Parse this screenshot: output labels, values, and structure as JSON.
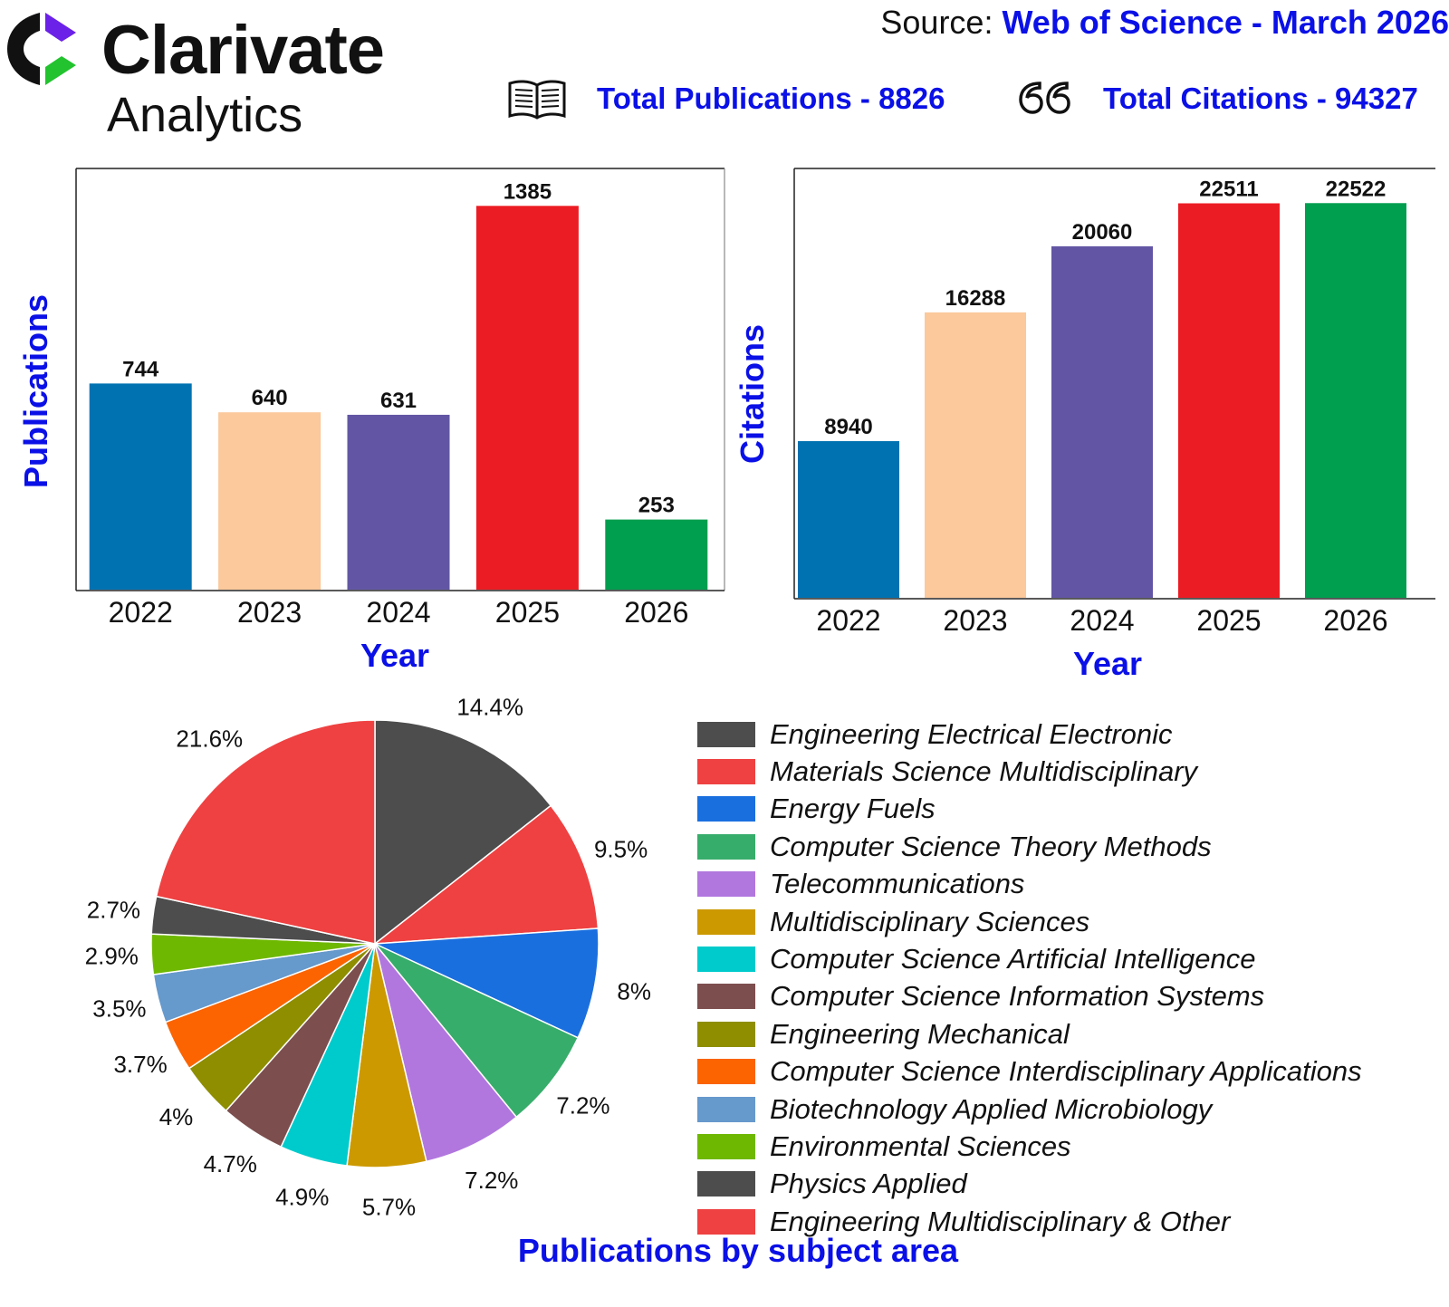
{
  "header": {
    "logo_line1": "Clarivate",
    "logo_line2": "Analytics",
    "source_label": "Source: ",
    "source_value": "Web of Science - March 2026",
    "total_publications": "Total Publications - 8826",
    "total_citations": "Total Citations - 94327",
    "publications_icon": "open-book-icon",
    "citations_icon": "quote-icon",
    "accent_color": "#0a10e6"
  },
  "chart_data": [
    {
      "type": "bar",
      "categories": [
        "2022",
        "2023",
        "2024",
        "2025",
        "2026"
      ],
      "values": [
        744,
        640,
        631,
        1385,
        253
      ],
      "labels": [
        "744",
        "640",
        "631",
        "1385",
        "253"
      ],
      "colors": [
        "#0072b2",
        "#fbc99b",
        "#6256a4",
        "#ec1c24",
        "#009e4f"
      ],
      "xlabel": "Year",
      "ylabel": "Publications",
      "ylim": [
        0,
        1520
      ],
      "grid": false
    },
    {
      "type": "bar",
      "categories": [
        "2022",
        "2023",
        "2024",
        "2025",
        "2026"
      ],
      "values": [
        8940,
        16288,
        20060,
        22511,
        22522
      ],
      "labels": [
        "8940",
        "16288",
        "20060",
        "22511",
        "22522"
      ],
      "colors": [
        "#0072b2",
        "#fbc99b",
        "#6256a4",
        "#ec1c24",
        "#009e4f"
      ],
      "xlabel": "Year",
      "ylabel": "Citations",
      "ylim": [
        0,
        24500
      ],
      "grid": false
    },
    {
      "type": "pie",
      "title": "Publications by subject area",
      "legend_position": "right",
      "slices": [
        {
          "name": "Engineering Electrical Electronic",
          "value": 14.4,
          "label": "14.4%",
          "color": "#4d4d4d"
        },
        {
          "name": "Materials Science Multidisciplinary",
          "value": 9.5,
          "label": "9.5%",
          "color": "#ef4141"
        },
        {
          "name": "Energy Fuels",
          "value": 8,
          "label": "8%",
          "color": "#1a6fdf"
        },
        {
          "name": "Computer Science Theory Methods",
          "value": 7.2,
          "label": "7.2%",
          "color": "#37ad6b"
        },
        {
          "name": "Telecommunications",
          "value": 7.2,
          "label": "7.2%",
          "color": "#b177de"
        },
        {
          "name": "Multidisciplinary Sciences",
          "value": 5.7,
          "label": "5.7%",
          "color": "#cc9900"
        },
        {
          "name": "Computer Science Artificial Intelligence",
          "value": 4.9,
          "label": "4.9%",
          "color": "#00cbcc"
        },
        {
          "name": "Computer Science Information Systems",
          "value": 4.7,
          "label": "4.7%",
          "color": "#7d4e4e"
        },
        {
          "name": "Engineering Mechanical",
          "value": 4,
          "label": "4%",
          "color": "#8e8e00"
        },
        {
          "name": "Computer Science Interdisciplinary Applications",
          "value": 3.7,
          "label": "3.7%",
          "color": "#fb6400"
        },
        {
          "name": "Biotechnology Applied Microbiology",
          "value": 3.5,
          "label": "3.5%",
          "color": "#6699cc"
        },
        {
          "name": "Environmental Sciences",
          "value": 2.9,
          "label": "2.9%",
          "color": "#6fb802"
        },
        {
          "name": "Physics Applied",
          "value": 2.7,
          "label": "2.7%",
          "color": "#4d4d4d"
        },
        {
          "name": "Engineering Multidisciplinary & Other",
          "value": 21.6,
          "label": "21.6%",
          "color": "#ef4141"
        }
      ]
    }
  ]
}
